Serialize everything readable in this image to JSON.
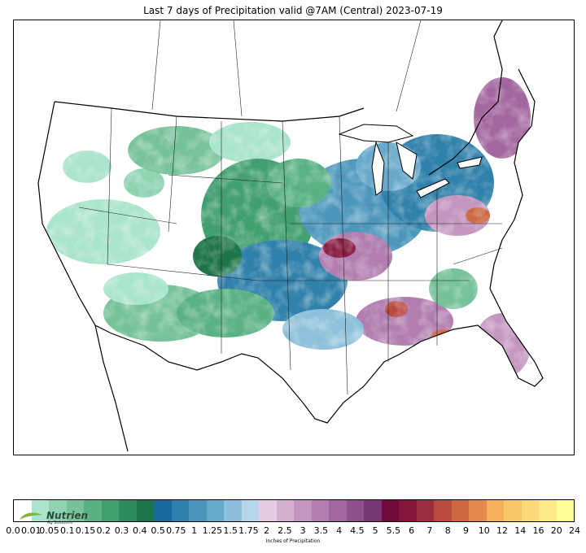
{
  "title": "Last 7 days of Precipitation valid @7AM (Central) 2023-07-19",
  "map": {
    "region": "Continental United States",
    "variable": "7-day precipitation"
  },
  "legend": {
    "label": "Inches of Precipitation",
    "ticks": [
      "0.0",
      "0.01",
      "0.05",
      "0.1",
      "0.15",
      "0.2",
      "0.3",
      "0.4",
      "0.5",
      "0.75",
      "1",
      "1.25",
      "1.5",
      "1.75",
      "2",
      "2.5",
      "3",
      "3.5",
      "4",
      "4.5",
      "5",
      "5.5",
      "6",
      "7",
      "8",
      "9",
      "10",
      "12",
      "14",
      "16",
      "20",
      "24"
    ],
    "colors": [
      "#ffffff",
      "#a9e4cc",
      "#8fd4b1",
      "#77c29a",
      "#5ab184",
      "#429f70",
      "#2c8a5c",
      "#1d7449",
      "#196aa0",
      "#2f80aa",
      "#4c96bc",
      "#68a9cb",
      "#8dc0da",
      "#b6d4ea",
      "#e6cce3",
      "#d5afd0",
      "#c395bf",
      "#b27daf",
      "#a3679f",
      "#8f4f8c",
      "#7a3775",
      "#730a3c",
      "#85163d",
      "#9a2f3f",
      "#b84a40",
      "#cc6941",
      "#e48a4d",
      "#f4b05c",
      "#f8c766",
      "#fbd97a",
      "#fde88a",
      "#ffff99"
    ]
  },
  "logo": {
    "name": "Nutrien",
    "tagline": "Ag Solutions"
  }
}
